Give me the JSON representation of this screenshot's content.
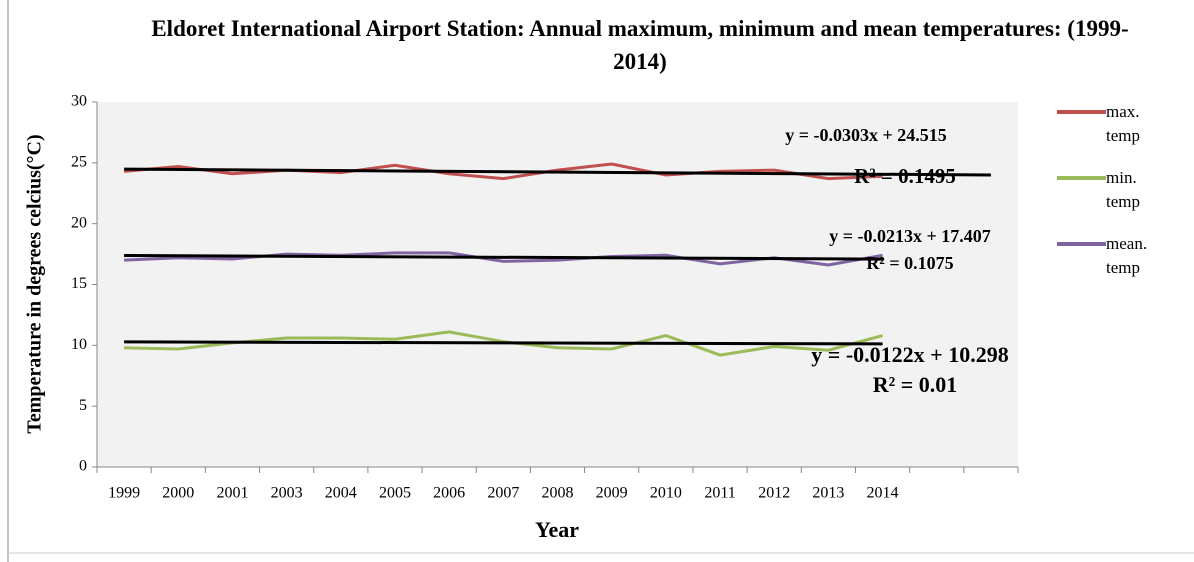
{
  "chart_data": {
    "type": "line",
    "title": "Eldoret International Airport Station: Annual maximum, minimum and mean temperatures: (1999-2014)",
    "x_label": "Year",
    "y_label": "Temperature in degrees celcius(°C)",
    "categories": [
      "1999",
      "2000",
      "2001",
      "2003",
      "2004",
      "2005",
      "2006",
      "2007",
      "2008",
      "2009",
      "2010",
      "2011",
      "2012",
      "2013",
      "2014",
      null,
      null
    ],
    "series": [
      {
        "name": "max. temp",
        "color": "#c0504d",
        "values": [
          24.3,
          24.7,
          24.1,
          24.4,
          24.2,
          24.8,
          24.1,
          23.7,
          24.4,
          24.9,
          24.0,
          24.3,
          24.4,
          23.7,
          23.9,
          null,
          null
        ],
        "trendline": {
          "slope": -0.0303,
          "intercept": 24.515,
          "forward": 2,
          "equation": "y = -0.0303x + 24.515",
          "r_squared": "R² = 0.1495"
        }
      },
      {
        "name": "min. temp",
        "color": "#9bbb59",
        "values": [
          9.8,
          9.7,
          10.2,
          10.6,
          10.6,
          10.5,
          11.1,
          10.3,
          9.8,
          9.7,
          10.8,
          9.2,
          9.9,
          9.6,
          10.8,
          null,
          null
        ],
        "trendline": {
          "slope": -0.0122,
          "intercept": 10.298,
          "forward": 0,
          "equation": "y = -0.0122x + 10.298",
          "r_squared": "R² = 0.01"
        }
      },
      {
        "name": "mean. temp",
        "color": "#8064a2",
        "values": [
          17.0,
          17.2,
          17.1,
          17.5,
          17.4,
          17.6,
          17.6,
          16.9,
          17.0,
          17.3,
          17.4,
          16.7,
          17.2,
          16.6,
          17.4,
          null,
          null
        ],
        "trendline": {
          "slope": -0.0213,
          "intercept": 17.407,
          "forward": 0,
          "equation": "y = -0.0213x + 17.407",
          "r_squared": "R² = 0.1075"
        }
      }
    ],
    "ylim": [
      0,
      30
    ],
    "yticks": [
      0,
      5,
      10,
      15,
      20,
      25,
      30
    ],
    "grid": false,
    "legend": "right"
  }
}
